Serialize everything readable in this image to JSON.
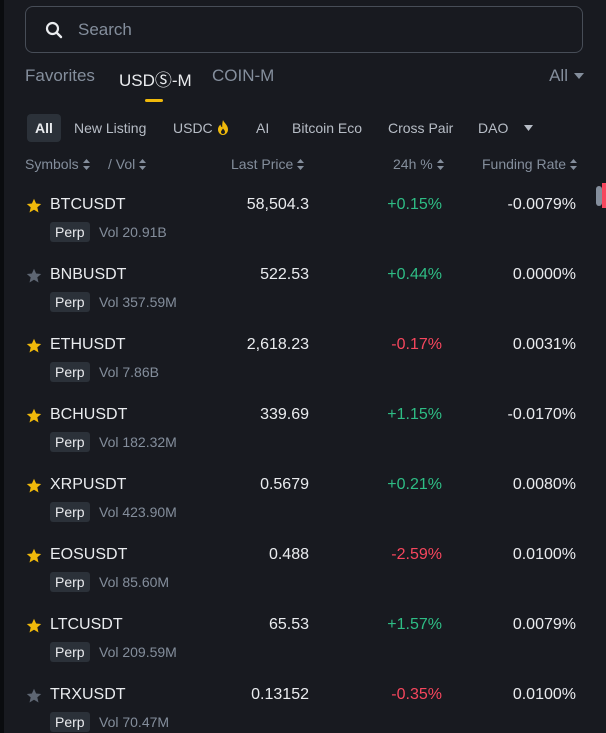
{
  "search": {
    "placeholder": "Search",
    "icon": "search-icon"
  },
  "market_tabs": [
    {
      "label": "Favorites",
      "active": false
    },
    {
      "label": "USDⓈ-M",
      "active": true
    },
    {
      "label": "COIN-M",
      "active": false
    }
  ],
  "filter_all": {
    "label": "All"
  },
  "categories": [
    {
      "label": "All",
      "active": true
    },
    {
      "label": "New Listing"
    },
    {
      "label": "USDC"
    },
    {
      "label": "AI"
    },
    {
      "label": "Bitcoin Eco"
    },
    {
      "label": "Cross Pair"
    },
    {
      "label": "DAO"
    }
  ],
  "columns": {
    "symbols": "Symbols",
    "vol": "/ Vol",
    "last_price": "Last Price",
    "change": "24h %",
    "funding": "Funding Rate"
  },
  "rows": [
    {
      "symbol": "BTCUSDT",
      "favorite": true,
      "type": "Perp",
      "vol": "Vol 20.91B",
      "price": "58,504.3",
      "change": "+0.15%",
      "dir": "up",
      "funding": "-0.0079%"
    },
    {
      "symbol": "BNBUSDT",
      "favorite": false,
      "type": "Perp",
      "vol": "Vol 357.59M",
      "price": "522.53",
      "change": "+0.44%",
      "dir": "up",
      "funding": "0.0000%"
    },
    {
      "symbol": "ETHUSDT",
      "favorite": true,
      "type": "Perp",
      "vol": "Vol 7.86B",
      "price": "2,618.23",
      "change": "-0.17%",
      "dir": "down",
      "funding": "0.0031%"
    },
    {
      "symbol": "BCHUSDT",
      "favorite": true,
      "type": "Perp",
      "vol": "Vol 182.32M",
      "price": "339.69",
      "change": "+1.15%",
      "dir": "up",
      "funding": "-0.0170%"
    },
    {
      "symbol": "XRPUSDT",
      "favorite": true,
      "type": "Perp",
      "vol": "Vol 423.90M",
      "price": "0.5679",
      "change": "+0.21%",
      "dir": "up",
      "funding": "0.0080%"
    },
    {
      "symbol": "EOSUSDT",
      "favorite": true,
      "type": "Perp",
      "vol": "Vol 85.60M",
      "price": "0.488",
      "change": "-2.59%",
      "dir": "down",
      "funding": "0.0100%"
    },
    {
      "symbol": "LTCUSDT",
      "favorite": true,
      "type": "Perp",
      "vol": "Vol 209.59M",
      "price": "65.53",
      "change": "+1.57%",
      "dir": "up",
      "funding": "0.0079%"
    },
    {
      "symbol": "TRXUSDT",
      "favorite": false,
      "type": "Perp",
      "vol": "Vol 70.47M",
      "price": "0.13152",
      "change": "-0.35%",
      "dir": "down",
      "funding": "0.0100%"
    }
  ],
  "colors": {
    "background": "#181a20",
    "accent": "#f0b90b",
    "up": "#2ebd85",
    "down": "#f6465d",
    "muted": "#848e9c",
    "star_off": "#5e6673"
  }
}
